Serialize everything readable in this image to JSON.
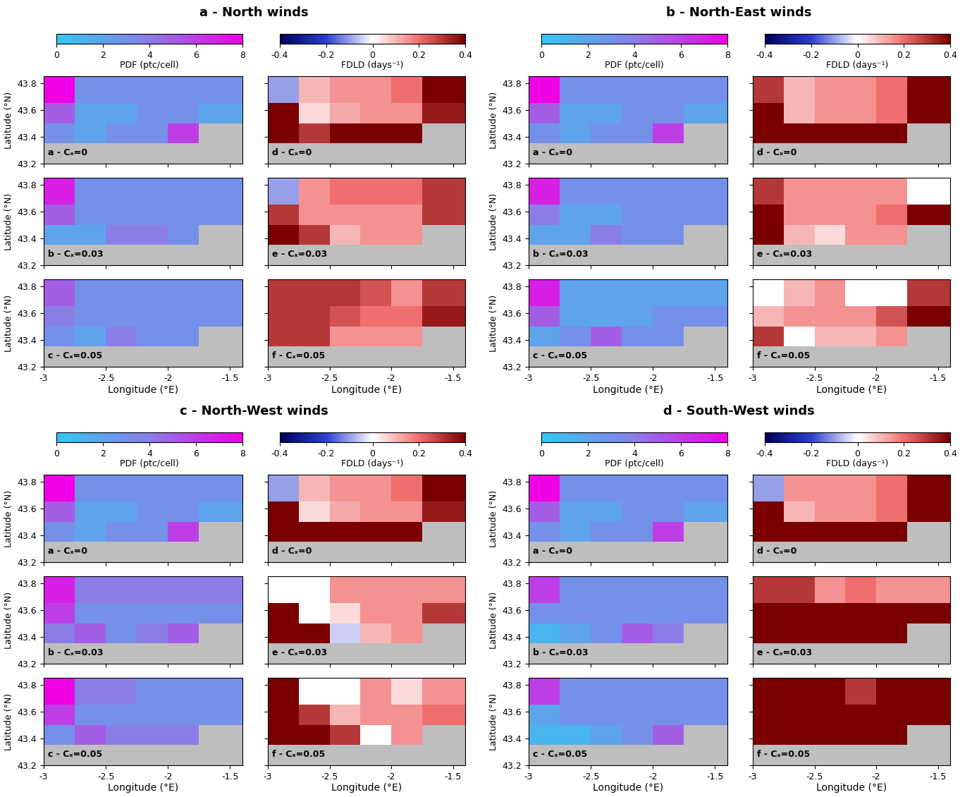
{
  "chart_data": {
    "type": "heatmap",
    "xlim": [
      -3,
      -1.4
    ],
    "ylim": [
      43.2,
      43.85
    ],
    "xticks": [
      -3,
      -2.5,
      -2,
      -1.5
    ],
    "yticks": [
      43.2,
      43.4,
      43.6,
      43.8
    ],
    "xlabel": "Longitude (°E)",
    "ylabel": "Latitude (°N)",
    "x_edges": [
      -3,
      -2.75,
      -2.5,
      -2.25,
      -2,
      -1.75,
      -1.4
    ],
    "y_edges": [
      43.2,
      43.35,
      43.5,
      43.65,
      43.85
    ],
    "colorbars": [
      {
        "label": "PDF (ptc/cell)",
        "range": [
          0,
          8
        ],
        "ticks": [
          0,
          2,
          4,
          6,
          8
        ]
      },
      {
        "label": "FDLD (days⁻¹)",
        "range": [
          -0.4,
          0.4
        ],
        "ticks": [
          -0.4,
          -0.2,
          0,
          0.2,
          0.4
        ]
      }
    ],
    "groups": [
      {
        "title": "a - North winds",
        "pdf": [
          {
            "title": "a - Cₓ=0",
            "cells": [
              [
                null,
                null,
                null,
                null,
                null,
                null
              ],
              [
                3,
                2,
                3,
                3,
                6,
                null
              ],
              [
                5,
                2,
                2,
                3,
                3,
                2
              ],
              [
                8,
                3,
                3,
                3,
                3,
                3
              ]
            ]
          },
          {
            "title": "b - Cₓ=0.03",
            "cells": [
              [
                null,
                null,
                null,
                null,
                null,
                null
              ],
              [
                2,
                2,
                4,
                4,
                3,
                null
              ],
              [
                5,
                3,
                3,
                3,
                3,
                3
              ],
              [
                7,
                3,
                3,
                3,
                3,
                3
              ]
            ]
          },
          {
            "title": "c - Cₓ=0.05",
            "cells": [
              [
                null,
                null,
                null,
                null,
                null,
                null
              ],
              [
                3,
                2,
                4,
                3,
                3,
                null
              ],
              [
                4,
                3,
                3,
                3,
                3,
                3
              ],
              [
                5,
                3,
                3,
                3,
                3,
                3
              ]
            ]
          }
        ],
        "fdld": [
          {
            "title": "d - Cₓ=0",
            "cells": [
              [
                null,
                null,
                null,
                null,
                null,
                null
              ],
              [
                0.4,
                0.3,
                0.4,
                0.4,
                0.4,
                null
              ],
              [
                0.4,
                0.05,
                0.12,
                0.15,
                0.15,
                0.35
              ],
              [
                -0.1,
                0.1,
                0.15,
                0.15,
                0.2,
                0.4
              ]
            ]
          },
          {
            "title": "e - Cₓ=0.03",
            "cells": [
              [
                null,
                null,
                null,
                null,
                null,
                null
              ],
              [
                0.4,
                0.3,
                0.1,
                0.15,
                0.15,
                null
              ],
              [
                0.3,
                0.15,
                0.15,
                0.15,
                0.15,
                0.3
              ],
              [
                -0.1,
                0.15,
                0.2,
                0.2,
                0.2,
                0.3
              ]
            ]
          },
          {
            "title": "f - Cₓ=0.05",
            "cells": [
              [
                null,
                null,
                null,
                null,
                null,
                null
              ],
              [
                0.3,
                0.3,
                0.15,
                0.15,
                0.15,
                null
              ],
              [
                0.3,
                0.3,
                0.25,
                0.2,
                0.2,
                0.35
              ],
              [
                0.3,
                0.3,
                0.3,
                0.25,
                0.15,
                0.3
              ]
            ]
          }
        ]
      },
      {
        "title": "b - North-East winds",
        "pdf": [
          {
            "title": "a - Cₓ=0",
            "cells": [
              [
                null,
                null,
                null,
                null,
                null,
                null
              ],
              [
                3,
                2,
                3,
                3,
                6,
                null
              ],
              [
                5,
                2,
                2,
                3,
                3,
                2
              ],
              [
                8,
                3,
                3,
                3,
                3,
                3
              ]
            ]
          },
          {
            "title": "b - Cₓ=0.03",
            "cells": [
              [
                null,
                null,
                null,
                null,
                null,
                null
              ],
              [
                2,
                2,
                4,
                3,
                3,
                null
              ],
              [
                4,
                2,
                2,
                3,
                3,
                3
              ],
              [
                7,
                3,
                3,
                3,
                3,
                3
              ]
            ]
          },
          {
            "title": "c - Cₓ=0.05",
            "cells": [
              [
                null,
                null,
                null,
                null,
                null,
                null
              ],
              [
                2,
                3,
                5,
                3,
                3,
                null
              ],
              [
                5,
                2,
                2,
                2,
                3,
                3
              ],
              [
                7,
                2,
                2,
                2,
                2,
                2
              ]
            ]
          }
        ],
        "fdld": [
          {
            "title": "d - Cₓ=0",
            "cells": [
              [
                null,
                null,
                null,
                null,
                null,
                null
              ],
              [
                0.4,
                0.4,
                0.4,
                0.4,
                0.4,
                null
              ],
              [
                0.4,
                0.1,
                0.15,
                0.15,
                0.2,
                0.4
              ],
              [
                0.3,
                0.1,
                0.15,
                0.15,
                0.2,
                0.4
              ]
            ]
          },
          {
            "title": "e - Cₓ=0.03",
            "cells": [
              [
                null,
                null,
                null,
                null,
                null,
                null
              ],
              [
                0.4,
                0.1,
                0.05,
                0.15,
                0.15,
                null
              ],
              [
                0.4,
                0.15,
                0.15,
                0.15,
                0.2,
                0.4
              ],
              [
                0.3,
                0.15,
                0.15,
                0.15,
                0.15,
                0.0
              ]
            ]
          },
          {
            "title": "f - Cₓ=0.05",
            "cells": [
              [
                null,
                null,
                null,
                null,
                null,
                null
              ],
              [
                0.3,
                0.0,
                0.1,
                0.1,
                0.15,
                null
              ],
              [
                0.1,
                0.15,
                0.15,
                0.15,
                0.25,
                0.4
              ],
              [
                0.0,
                0.1,
                0.15,
                0.0,
                0.0,
                0.3
              ]
            ]
          }
        ]
      },
      {
        "title": "c - North-West winds",
        "pdf": [
          {
            "title": "a - Cₓ=0",
            "cells": [
              [
                null,
                null,
                null,
                null,
                null,
                null
              ],
              [
                3,
                2,
                3,
                3,
                6,
                null
              ],
              [
                5,
                2,
                2,
                3,
                3,
                2
              ],
              [
                8,
                3,
                3,
                3,
                3,
                3
              ]
            ]
          },
          {
            "title": "b - Cₓ=0.03",
            "cells": [
              [
                null,
                null,
                null,
                null,
                null,
                null
              ],
              [
                4,
                5,
                3,
                4,
                5,
                null
              ],
              [
                6,
                3,
                3,
                3,
                3,
                3
              ],
              [
                7,
                4,
                4,
                4,
                4,
                4
              ]
            ]
          },
          {
            "title": "c - Cₓ=0.05",
            "cells": [
              [
                null,
                null,
                null,
                null,
                null,
                null
              ],
              [
                3,
                5,
                4,
                4,
                4,
                null
              ],
              [
                6,
                3,
                3,
                3,
                3,
                3
              ],
              [
                8,
                4,
                4,
                3,
                3,
                3
              ]
            ]
          }
        ],
        "fdld": [
          {
            "title": "d - Cₓ=0",
            "cells": [
              [
                null,
                null,
                null,
                null,
                null,
                null
              ],
              [
                0.4,
                0.4,
                0.4,
                0.4,
                0.4,
                null
              ],
              [
                0.4,
                0.05,
                0.12,
                0.15,
                0.15,
                0.35
              ],
              [
                -0.1,
                0.1,
                0.15,
                0.15,
                0.2,
                0.4
              ]
            ]
          },
          {
            "title": "e - Cₓ=0.03",
            "cells": [
              [
                null,
                null,
                null,
                null,
                null,
                null
              ],
              [
                0.4,
                0.4,
                -0.05,
                0.1,
                0.15,
                null
              ],
              [
                0.4,
                0.0,
                0.05,
                0.15,
                0.15,
                0.3
              ],
              [
                0.0,
                0.0,
                0.15,
                0.15,
                0.15,
                0.15
              ]
            ]
          },
          {
            "title": "f - Cₓ=0.05",
            "cells": [
              [
                null,
                null,
                null,
                null,
                null,
                null
              ],
              [
                0.4,
                0.4,
                0.3,
                0.0,
                0.15,
                null
              ],
              [
                0.4,
                0.3,
                0.1,
                0.15,
                0.15,
                0.2
              ],
              [
                0.4,
                0.0,
                0.0,
                0.15,
                0.05,
                0.15
              ]
            ]
          }
        ]
      },
      {
        "title": "d - South-West winds",
        "pdf": [
          {
            "title": "a - Cₓ=0",
            "cells": [
              [
                null,
                null,
                null,
                null,
                null,
                null
              ],
              [
                3,
                2,
                3,
                3,
                6,
                null
              ],
              [
                5,
                2,
                2,
                3,
                3,
                2
              ],
              [
                8,
                3,
                3,
                3,
                3,
                3
              ]
            ]
          },
          {
            "title": "b - Cₓ=0.03",
            "cells": [
              [
                null,
                null,
                null,
                null,
                null,
                null
              ],
              [
                1,
                2,
                3,
                5,
                4,
                null
              ],
              [
                3,
                3,
                3,
                3,
                3,
                3
              ],
              [
                6,
                3,
                3,
                3,
                3,
                3
              ]
            ]
          },
          {
            "title": "c - Cₓ=0.05",
            "cells": [
              [
                null,
                null,
                null,
                null,
                null,
                null
              ],
              [
                1,
                1,
                2,
                3,
                5,
                null
              ],
              [
                2,
                3,
                3,
                3,
                3,
                3
              ],
              [
                6,
                3,
                3,
                3,
                3,
                3
              ]
            ]
          }
        ],
        "fdld": [
          {
            "title": "d - Cₓ=0",
            "cells": [
              [
                null,
                null,
                null,
                null,
                null,
                null
              ],
              [
                0.4,
                0.4,
                0.4,
                0.4,
                0.4,
                null
              ],
              [
                0.4,
                0.1,
                0.15,
                0.15,
                0.2,
                0.4
              ],
              [
                -0.1,
                0.15,
                0.15,
                0.15,
                0.2,
                0.4
              ]
            ]
          },
          {
            "title": "e - Cₓ=0.03",
            "cells": [
              [
                null,
                null,
                null,
                null,
                null,
                null
              ],
              [
                0.4,
                0.4,
                0.4,
                0.4,
                0.4,
                null
              ],
              [
                0.4,
                0.4,
                0.4,
                0.4,
                0.4,
                0.4
              ],
              [
                0.3,
                0.3,
                0.15,
                0.2,
                0.15,
                0.15
              ]
            ]
          },
          {
            "title": "f - Cₓ=0.05",
            "cells": [
              [
                null,
                null,
                null,
                null,
                null,
                null
              ],
              [
                0.4,
                0.4,
                0.4,
                0.4,
                0.4,
                null
              ],
              [
                0.4,
                0.4,
                0.4,
                0.4,
                0.4,
                0.4
              ],
              [
                0.4,
                0.4,
                0.4,
                0.3,
                0.4,
                0.4
              ]
            ]
          }
        ]
      }
    ]
  }
}
